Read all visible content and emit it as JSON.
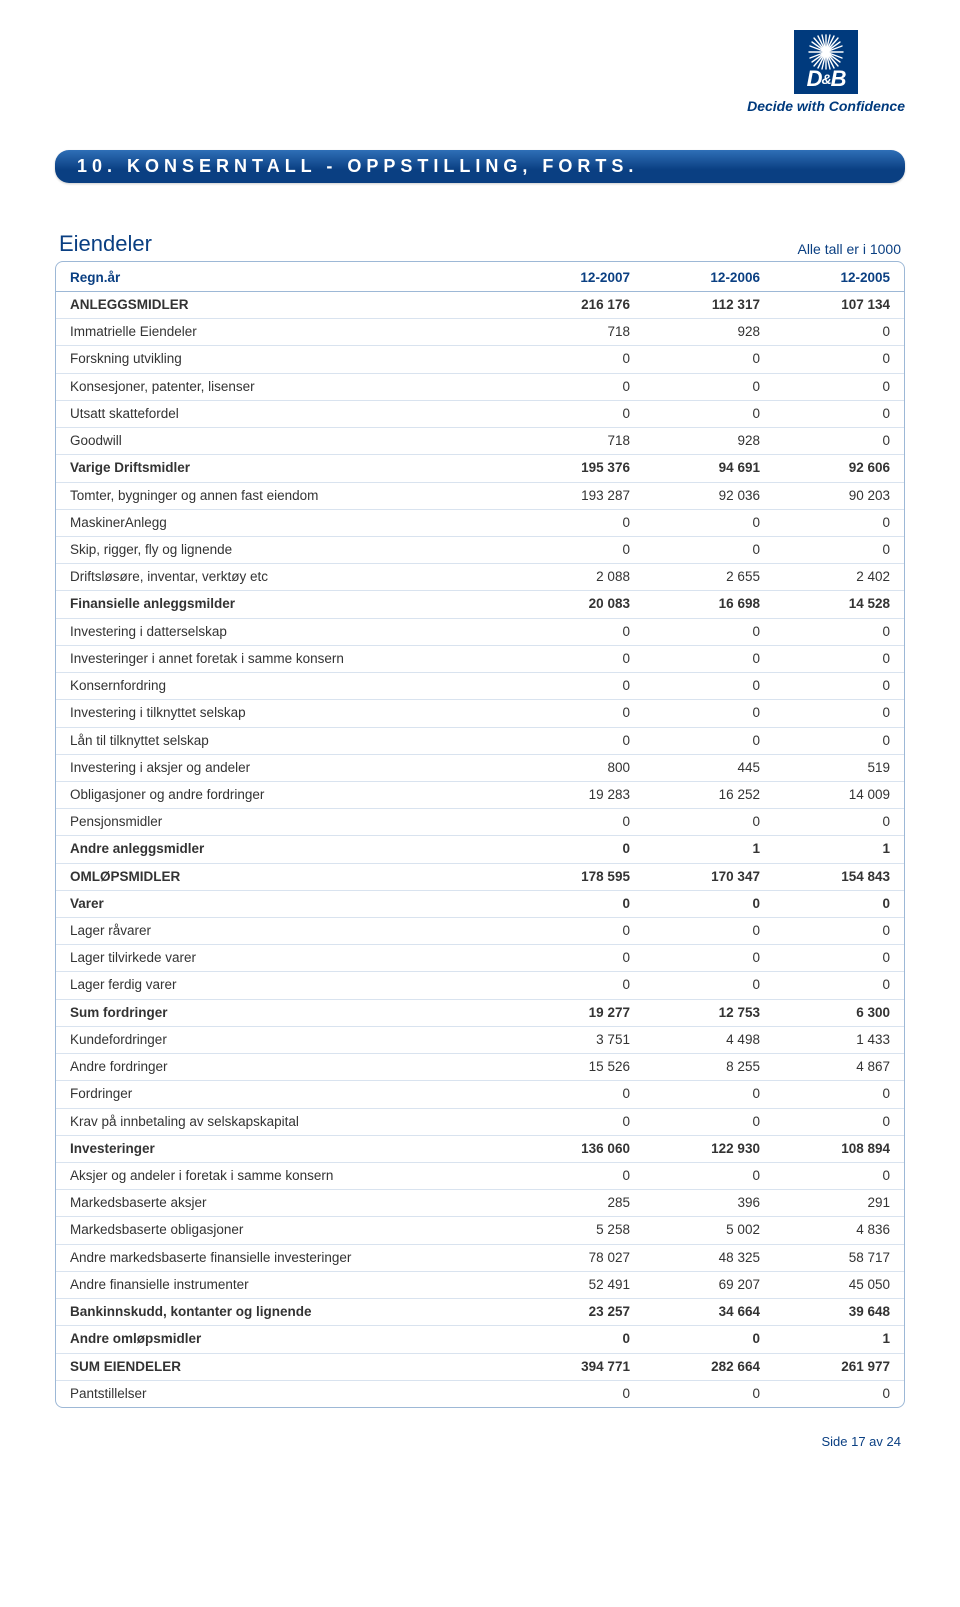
{
  "brand": {
    "tagline": "Decide with Confidence",
    "logo_text_d": "D",
    "logo_text_amp": "&",
    "logo_text_b": "B"
  },
  "section_title": "10.  KONSERNTALL - OPPSTILLING, FORTS.",
  "table_heading": "Eiendeler",
  "table_note": "Alle tall er i 1000",
  "columns": [
    "Regn.år",
    "12-2007",
    "12-2006",
    "12-2005"
  ],
  "rows": [
    {
      "bold": true,
      "label": "ANLEGGSMIDLER",
      "v": [
        "216 176",
        "112 317",
        "107 134"
      ]
    },
    {
      "bold": false,
      "label": "Immatrielle Eiendeler",
      "v": [
        "718",
        "928",
        "0"
      ]
    },
    {
      "bold": false,
      "label": "Forskning utvikling",
      "v": [
        "0",
        "0",
        "0"
      ]
    },
    {
      "bold": false,
      "label": "Konsesjoner, patenter, lisenser",
      "v": [
        "0",
        "0",
        "0"
      ]
    },
    {
      "bold": false,
      "label": "Utsatt skattefordel",
      "v": [
        "0",
        "0",
        "0"
      ]
    },
    {
      "bold": false,
      "label": "Goodwill",
      "v": [
        "718",
        "928",
        "0"
      ]
    },
    {
      "bold": true,
      "label": "Varige Driftsmidler",
      "v": [
        "195 376",
        "94 691",
        "92 606"
      ]
    },
    {
      "bold": false,
      "label": "Tomter, bygninger og annen fast eiendom",
      "v": [
        "193 287",
        "92 036",
        "90 203"
      ]
    },
    {
      "bold": false,
      "label": "MaskinerAnlegg",
      "v": [
        "0",
        "0",
        "0"
      ]
    },
    {
      "bold": false,
      "label": "Skip, rigger, fly og lignende",
      "v": [
        "0",
        "0",
        "0"
      ]
    },
    {
      "bold": false,
      "label": "Driftsløsøre, inventar, verktøy etc",
      "v": [
        "2 088",
        "2 655",
        "2 402"
      ]
    },
    {
      "bold": true,
      "label": "Finansielle anleggsmilder",
      "v": [
        "20 083",
        "16 698",
        "14 528"
      ]
    },
    {
      "bold": false,
      "label": "Investering i datterselskap",
      "v": [
        "0",
        "0",
        "0"
      ]
    },
    {
      "bold": false,
      "label": "Investeringer i annet foretak i samme konsern",
      "v": [
        "0",
        "0",
        "0"
      ]
    },
    {
      "bold": false,
      "label": "Konsernfordring",
      "v": [
        "0",
        "0",
        "0"
      ]
    },
    {
      "bold": false,
      "label": "Investering i tilknyttet selskap",
      "v": [
        "0",
        "0",
        "0"
      ]
    },
    {
      "bold": false,
      "label": "Lån til tilknyttet selskap",
      "v": [
        "0",
        "0",
        "0"
      ]
    },
    {
      "bold": false,
      "label": "Investering i aksjer og andeler",
      "v": [
        "800",
        "445",
        "519"
      ]
    },
    {
      "bold": false,
      "label": "Obligasjoner og andre fordringer",
      "v": [
        "19 283",
        "16 252",
        "14 009"
      ]
    },
    {
      "bold": false,
      "label": "Pensjonsmidler",
      "v": [
        "0",
        "0",
        "0"
      ]
    },
    {
      "bold": true,
      "label": "Andre anleggsmidler",
      "v": [
        "0",
        "1",
        "1"
      ]
    },
    {
      "bold": true,
      "label": "OMLØPSMIDLER",
      "v": [
        "178 595",
        "170 347",
        "154 843"
      ]
    },
    {
      "bold": true,
      "label": "Varer",
      "v": [
        "0",
        "0",
        "0"
      ]
    },
    {
      "bold": false,
      "label": "Lager råvarer",
      "v": [
        "0",
        "0",
        "0"
      ]
    },
    {
      "bold": false,
      "label": "Lager tilvirkede varer",
      "v": [
        "0",
        "0",
        "0"
      ]
    },
    {
      "bold": false,
      "label": "Lager ferdig varer",
      "v": [
        "0",
        "0",
        "0"
      ]
    },
    {
      "bold": true,
      "label": "Sum fordringer",
      "v": [
        "19 277",
        "12 753",
        "6 300"
      ]
    },
    {
      "bold": false,
      "label": "Kundefordringer",
      "v": [
        "3 751",
        "4 498",
        "1 433"
      ]
    },
    {
      "bold": false,
      "label": "Andre fordringer",
      "v": [
        "15 526",
        "8 255",
        "4 867"
      ]
    },
    {
      "bold": false,
      "label": "Fordringer",
      "v": [
        "0",
        "0",
        "0"
      ]
    },
    {
      "bold": false,
      "label": "Krav på innbetaling av selskapskapital",
      "v": [
        "0",
        "0",
        "0"
      ]
    },
    {
      "bold": true,
      "label": "Investeringer",
      "v": [
        "136 060",
        "122 930",
        "108 894"
      ]
    },
    {
      "bold": false,
      "label": "Aksjer og andeler i foretak i samme konsern",
      "v": [
        "0",
        "0",
        "0"
      ]
    },
    {
      "bold": false,
      "label": "Markedsbaserte aksjer",
      "v": [
        "285",
        "396",
        "291"
      ]
    },
    {
      "bold": false,
      "label": "Markedsbaserte obligasjoner",
      "v": [
        "5 258",
        "5 002",
        "4 836"
      ]
    },
    {
      "bold": false,
      "label": "Andre markedsbaserte finansielle investeringer",
      "v": [
        "78 027",
        "48 325",
        "58 717"
      ]
    },
    {
      "bold": false,
      "label": "Andre finansielle instrumenter",
      "v": [
        "52 491",
        "69 207",
        "45 050"
      ]
    },
    {
      "bold": true,
      "label": "Bankinnskudd, kontanter og lignende",
      "v": [
        "23 257",
        "34 664",
        "39 648"
      ]
    },
    {
      "bold": true,
      "label": "Andre omløpsmidler",
      "v": [
        "0",
        "0",
        "1"
      ]
    },
    {
      "bold": true,
      "label": "SUM EIENDELER",
      "v": [
        "394 771",
        "282 664",
        "261 977"
      ]
    },
    {
      "bold": false,
      "label": "Pantstillelser",
      "v": [
        "0",
        "0",
        "0"
      ]
    }
  ],
  "footer": "Side 17 av 24"
}
